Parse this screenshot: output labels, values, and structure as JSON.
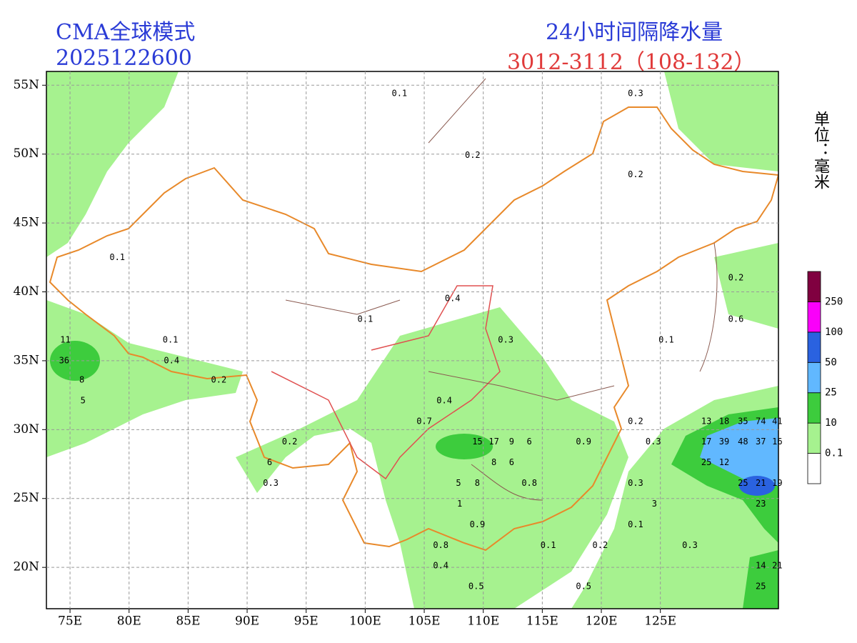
{
  "header": {
    "model": "CMA全球模式",
    "init_time": "2025122600",
    "product": "24小时间隔降水量",
    "period": "3012-3112（108-132）",
    "unit": "单位：毫米"
  },
  "map": {
    "lon_range": [
      73,
      135
    ],
    "lat_range": [
      17,
      56
    ],
    "lon_ticks": [
      {
        "value": 75,
        "label": "75E"
      },
      {
        "value": 80,
        "label": "80E"
      },
      {
        "value": 85,
        "label": "85E"
      },
      {
        "value": 90,
        "label": "90E"
      },
      {
        "value": 95,
        "label": "95E"
      },
      {
        "value": 100,
        "label": "100E"
      },
      {
        "value": 105,
        "label": "105E"
      },
      {
        "value": 110,
        "label": "110E"
      },
      {
        "value": 115,
        "label": "115E"
      },
      {
        "value": 120,
        "label": "120E"
      },
      {
        "value": 125,
        "label": "125E"
      }
    ],
    "lat_ticks": [
      {
        "value": 20,
        "label": "20N"
      },
      {
        "value": 25,
        "label": "25N"
      },
      {
        "value": 30,
        "label": "30N"
      },
      {
        "value": 35,
        "label": "35N"
      },
      {
        "value": 40,
        "label": "40N"
      },
      {
        "value": 45,
        "label": "45N"
      },
      {
        "value": 50,
        "label": "50N"
      },
      {
        "value": 55,
        "label": "55N"
      }
    ],
    "stations": [
      {
        "lon": 102.9,
        "lat": 54.4,
        "value": 0.1
      },
      {
        "lon": 122.9,
        "lat": 54.4,
        "value": 0.3
      },
      {
        "lon": 109.1,
        "lat": 49.9,
        "value": 0.2
      },
      {
        "lon": 122.9,
        "lat": 48.5,
        "value": 0.2
      },
      {
        "lon": 79.0,
        "lat": 42.5,
        "value": 0.1
      },
      {
        "lon": 107.4,
        "lat": 39.5,
        "value": 0.4
      },
      {
        "lon": 100.0,
        "lat": 38.0,
        "value": 0.1
      },
      {
        "lon": 111.9,
        "lat": 36.5,
        "value": 0.3
      },
      {
        "lon": 83.5,
        "lat": 36.5,
        "value": 0.1
      },
      {
        "lon": 125.5,
        "lat": 36.5,
        "value": 0.1
      },
      {
        "lon": 131.4,
        "lat": 41.0,
        "value": 0.2
      },
      {
        "lon": 131.4,
        "lat": 38.0,
        "value": 0.6
      },
      {
        "lon": 74.6,
        "lat": 36.5,
        "value": 11
      },
      {
        "lon": 74.5,
        "lat": 35.0,
        "value": 36
      },
      {
        "lon": 76.0,
        "lat": 33.6,
        "value": 8
      },
      {
        "lon": 76.1,
        "lat": 32.1,
        "value": 5
      },
      {
        "lon": 83.6,
        "lat": 35.0,
        "value": 0.4
      },
      {
        "lon": 87.6,
        "lat": 33.6,
        "value": 0.2
      },
      {
        "lon": 93.6,
        "lat": 29.1,
        "value": 0.2
      },
      {
        "lon": 91.9,
        "lat": 27.6,
        "value": 6
      },
      {
        "lon": 92.0,
        "lat": 26.1,
        "value": 0.3
      },
      {
        "lon": 106.7,
        "lat": 32.1,
        "value": 0.4
      },
      {
        "lon": 105.0,
        "lat": 30.6,
        "value": 0.7
      },
      {
        "lon": 109.5,
        "lat": 29.1,
        "value": 15
      },
      {
        "lon": 110.9,
        "lat": 29.1,
        "value": 17
      },
      {
        "lon": 112.4,
        "lat": 29.1,
        "value": 9
      },
      {
        "lon": 113.9,
        "lat": 29.1,
        "value": 6
      },
      {
        "lon": 118.5,
        "lat": 29.1,
        "value": 0.9
      },
      {
        "lon": 110.9,
        "lat": 27.6,
        "value": 8
      },
      {
        "lon": 112.4,
        "lat": 27.6,
        "value": 6
      },
      {
        "lon": 107.9,
        "lat": 26.1,
        "value": 5
      },
      {
        "lon": 109.5,
        "lat": 26.1,
        "value": 8
      },
      {
        "lon": 113.9,
        "lat": 26.1,
        "value": 0.8
      },
      {
        "lon": 108.0,
        "lat": 24.6,
        "value": 1
      },
      {
        "lon": 109.5,
        "lat": 23.1,
        "value": 0.9
      },
      {
        "lon": 106.4,
        "lat": 21.6,
        "value": 0.8
      },
      {
        "lon": 106.4,
        "lat": 20.1,
        "value": 0.4
      },
      {
        "lon": 115.5,
        "lat": 21.6,
        "value": 0.1
      },
      {
        "lon": 109.4,
        "lat": 18.6,
        "value": 0.5
      },
      {
        "lon": 119.9,
        "lat": 21.6,
        "value": 0.2
      },
      {
        "lon": 118.5,
        "lat": 18.6,
        "value": 0.5
      },
      {
        "lon": 122.9,
        "lat": 30.6,
        "value": 0.2
      },
      {
        "lon": 128.9,
        "lat": 30.6,
        "value": 13
      },
      {
        "lon": 130.4,
        "lat": 30.6,
        "value": 18
      },
      {
        "lon": 132.0,
        "lat": 30.6,
        "value": 35
      },
      {
        "lon": 133.5,
        "lat": 30.6,
        "value": 74
      },
      {
        "lon": 134.9,
        "lat": 30.6,
        "value": 41
      },
      {
        "lon": 128.9,
        "lat": 29.1,
        "value": 17
      },
      {
        "lon": 130.4,
        "lat": 29.1,
        "value": 39
      },
      {
        "lon": 132.0,
        "lat": 29.1,
        "value": 48
      },
      {
        "lon": 133.5,
        "lat": 29.1,
        "value": 37
      },
      {
        "lon": 134.9,
        "lat": 29.1,
        "value": 16
      },
      {
        "lon": 128.9,
        "lat": 27.6,
        "value": 25
      },
      {
        "lon": 130.4,
        "lat": 27.6,
        "value": 12
      },
      {
        "lon": 132.0,
        "lat": 26.1,
        "value": 25
      },
      {
        "lon": 133.5,
        "lat": 26.1,
        "value": 21
      },
      {
        "lon": 134.9,
        "lat": 26.1,
        "value": 19
      },
      {
        "lon": 133.5,
        "lat": 24.6,
        "value": 23
      },
      {
        "lon": 133.5,
        "lat": 20.1,
        "value": 14
      },
      {
        "lon": 134.9,
        "lat": 20.1,
        "value": 21
      },
      {
        "lon": 133.5,
        "lat": 18.6,
        "value": 25
      },
      {
        "lon": 124.4,
        "lat": 29.1,
        "value": 0.3
      },
      {
        "lon": 122.9,
        "lat": 26.1,
        "value": 0.3
      },
      {
        "lon": 122.9,
        "lat": 23.1,
        "value": 0.1
      },
      {
        "lon": 124.5,
        "lat": 24.6,
        "value": 3
      },
      {
        "lon": 127.5,
        "lat": 21.6,
        "value": 0.3
      }
    ]
  },
  "legend": {
    "colors": [
      "#ffffff",
      "#a6f28f",
      "#3dcc3d",
      "#61b8ff",
      "#2a62e0",
      "#fa00fa",
      "#800040"
    ],
    "levels": [
      0.1,
      10,
      25,
      50,
      100,
      250
    ]
  }
}
